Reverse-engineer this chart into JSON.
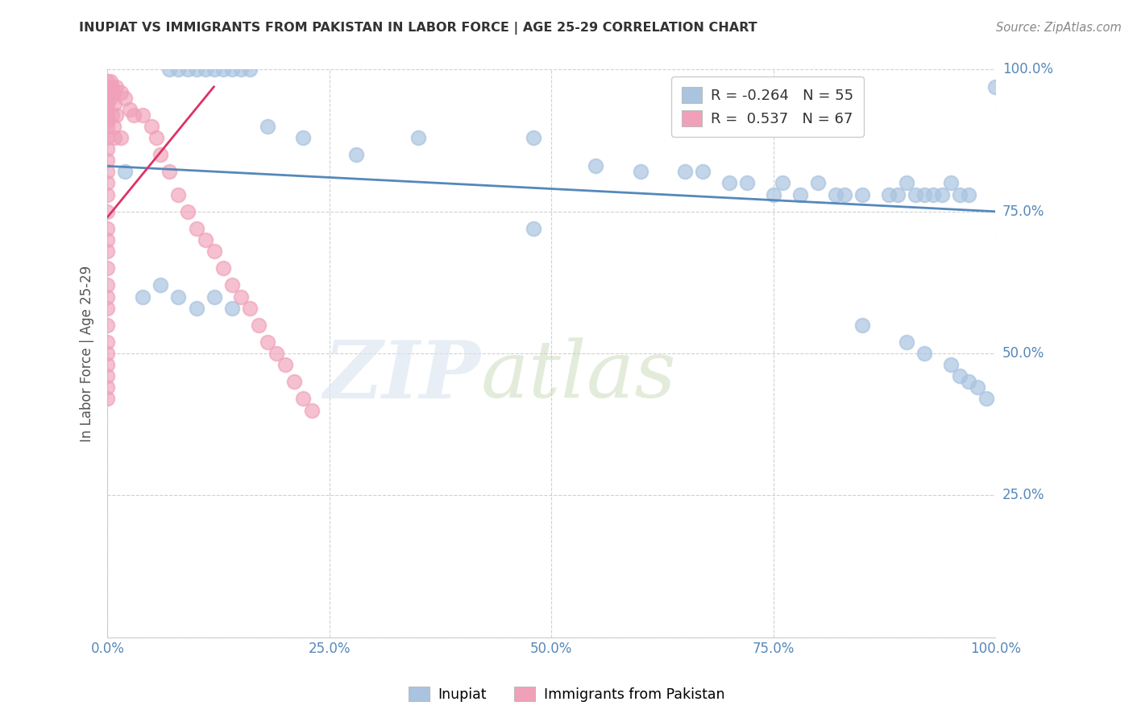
{
  "title": "INUPIAT VS IMMIGRANTS FROM PAKISTAN IN LABOR FORCE | AGE 25-29 CORRELATION CHART",
  "source": "Source: ZipAtlas.com",
  "ylabel": "In Labor Force | Age 25-29",
  "xlim": [
    0.0,
    1.0
  ],
  "ylim": [
    0.0,
    1.0
  ],
  "xticks": [
    0.0,
    0.25,
    0.5,
    0.75,
    1.0
  ],
  "yticks": [
    0.25,
    0.5,
    0.75,
    1.0
  ],
  "xticklabels": [
    "0.0%",
    "25.0%",
    "50.0%",
    "75.0%",
    "100.0%"
  ],
  "right_yticklabels": [
    "25.0%",
    "50.0%",
    "75.0%",
    "100.0%"
  ],
  "blue_color": "#aac4e0",
  "pink_color": "#f0a0b8",
  "blue_line_color": "#5588bb",
  "pink_line_color": "#dd3366",
  "legend_R1": "-0.264",
  "legend_N1": "55",
  "legend_R2": "0.537",
  "legend_N2": "67",
  "legend_label1": "Inupiat",
  "legend_label2": "Immigrants from Pakistan",
  "blue_trend_x": [
    0.0,
    1.0
  ],
  "blue_trend_y": [
    0.83,
    0.75
  ],
  "pink_trend_x": [
    0.0,
    0.12
  ],
  "pink_trend_y": [
    0.74,
    0.97
  ],
  "blue_x": [
    0.07,
    0.08,
    0.09,
    0.1,
    0.11,
    0.12,
    0.13,
    0.14,
    0.15,
    0.16,
    0.02,
    0.18,
    0.22,
    0.28,
    0.35,
    0.48,
    0.48,
    0.55,
    0.6,
    0.65,
    0.67,
    0.7,
    0.72,
    0.75,
    0.76,
    0.78,
    0.8,
    0.82,
    0.83,
    0.85,
    0.88,
    0.89,
    0.9,
    0.91,
    0.92,
    0.93,
    0.94,
    0.95,
    0.96,
    0.97,
    0.04,
    0.06,
    0.08,
    0.1,
    0.12,
    0.14,
    0.85,
    0.9,
    0.92,
    0.95,
    0.96,
    0.97,
    0.98,
    0.99,
    1.0
  ],
  "blue_y": [
    1.0,
    1.0,
    1.0,
    1.0,
    1.0,
    1.0,
    1.0,
    1.0,
    1.0,
    1.0,
    0.82,
    0.9,
    0.88,
    0.85,
    0.88,
    0.88,
    0.72,
    0.83,
    0.82,
    0.82,
    0.82,
    0.8,
    0.8,
    0.78,
    0.8,
    0.78,
    0.8,
    0.78,
    0.78,
    0.78,
    0.78,
    0.78,
    0.8,
    0.78,
    0.78,
    0.78,
    0.78,
    0.8,
    0.78,
    0.78,
    0.6,
    0.62,
    0.6,
    0.58,
    0.6,
    0.58,
    0.55,
    0.52,
    0.5,
    0.48,
    0.46,
    0.45,
    0.44,
    0.42,
    0.97
  ],
  "pink_x": [
    0.0,
    0.0,
    0.0,
    0.0,
    0.0,
    0.0,
    0.0,
    0.0,
    0.0,
    0.0,
    0.0,
    0.0,
    0.0,
    0.0,
    0.0,
    0.0,
    0.0,
    0.0,
    0.0,
    0.0,
    0.0,
    0.0,
    0.0,
    0.0,
    0.0,
    0.0,
    0.0,
    0.0,
    0.0,
    0.0,
    0.003,
    0.003,
    0.005,
    0.005,
    0.007,
    0.007,
    0.008,
    0.008,
    0.01,
    0.01,
    0.015,
    0.015,
    0.02,
    0.025,
    0.03,
    0.04,
    0.05,
    0.055,
    0.06,
    0.07,
    0.08,
    0.09,
    0.1,
    0.11,
    0.12,
    0.13,
    0.14,
    0.15,
    0.16,
    0.17,
    0.18,
    0.19,
    0.2,
    0.21,
    0.22,
    0.23
  ],
  "pink_y": [
    0.98,
    0.97,
    0.96,
    0.95,
    0.94,
    0.93,
    0.92,
    0.91,
    0.9,
    0.88,
    0.86,
    0.84,
    0.82,
    0.8,
    0.78,
    0.75,
    0.72,
    0.7,
    0.68,
    0.65,
    0.62,
    0.6,
    0.58,
    0.55,
    0.52,
    0.5,
    0.48,
    0.46,
    0.44,
    0.42,
    0.98,
    0.95,
    0.97,
    0.92,
    0.96,
    0.9,
    0.94,
    0.88,
    0.97,
    0.92,
    0.96,
    0.88,
    0.95,
    0.93,
    0.92,
    0.92,
    0.9,
    0.88,
    0.85,
    0.82,
    0.78,
    0.75,
    0.72,
    0.7,
    0.68,
    0.65,
    0.62,
    0.6,
    0.58,
    0.55,
    0.52,
    0.5,
    0.48,
    0.45,
    0.42,
    0.4
  ]
}
